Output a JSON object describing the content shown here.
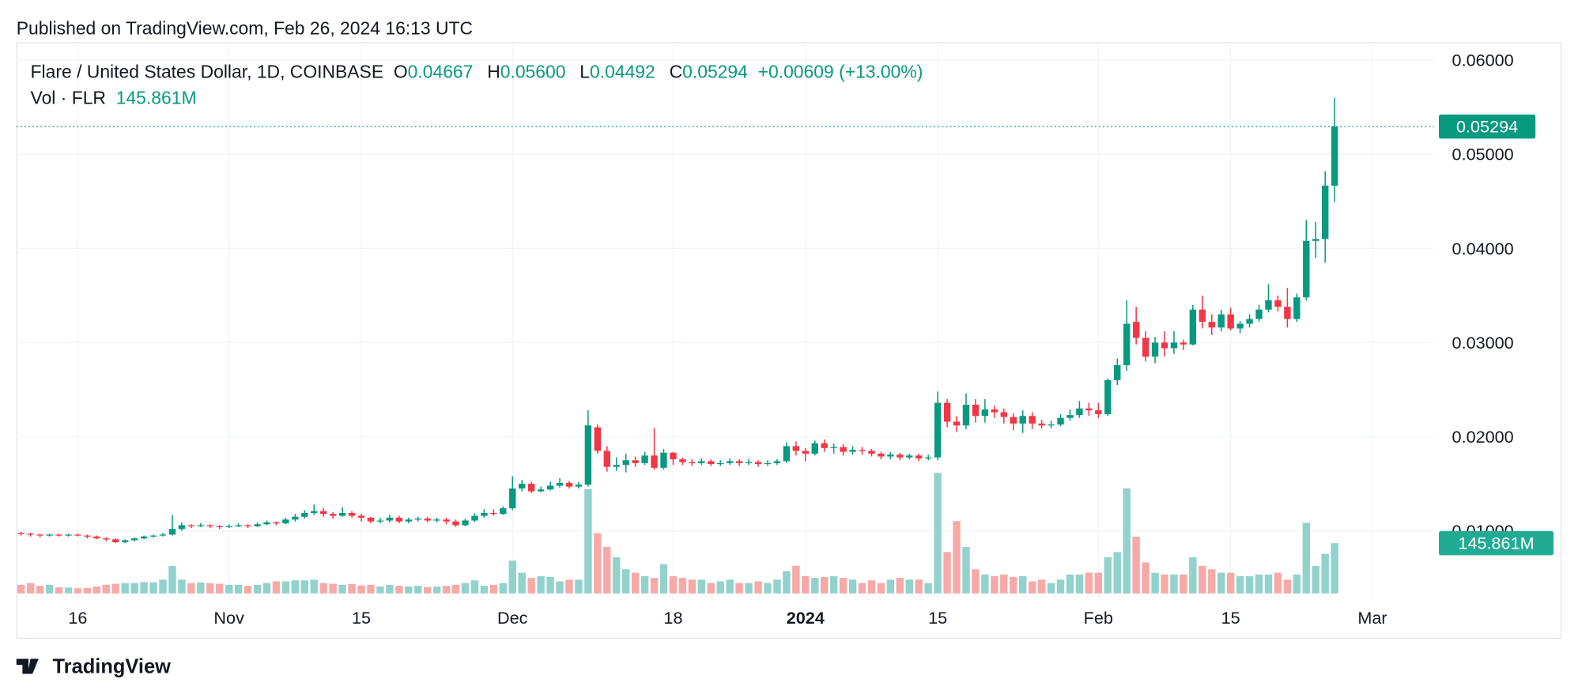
{
  "header": {
    "published": "Published on TradingView.com, Feb 26, 2024 16:13 UTC",
    "brand": "TradingView"
  },
  "chart_data": {
    "type": "candlestick",
    "legend": {
      "symbol": "Flare / United States Dollar, 1D, COINBASE",
      "o_label": "O",
      "o": "0.04667",
      "h_label": "H",
      "h": "0.05600",
      "l_label": "L",
      "l": "0.04492",
      "c_label": "C",
      "c": "0.05294",
      "change": "+0.00609 (+13.00%)",
      "volume_label": "Vol · FLR",
      "volume": "145.861M"
    },
    "last_price_label": "0.05294",
    "last_volume_label": "145.861M",
    "up_color": "#089981",
    "down_color": "#f23645",
    "volume_up_color": "#92d2cc",
    "volume_down_color": "#f7a9a7",
    "grid": true,
    "xlim": [
      -0.5,
      149.5
    ],
    "xticks": [
      {
        "value": 6,
        "label": "16"
      },
      {
        "value": 22,
        "label": "Nov"
      },
      {
        "value": 36,
        "label": "15"
      },
      {
        "value": 52,
        "label": "Dec"
      },
      {
        "value": 69,
        "label": "18"
      },
      {
        "value": 83,
        "label": "2024"
      },
      {
        "value": 97,
        "label": "15"
      },
      {
        "value": 114,
        "label": "Feb"
      },
      {
        "value": 128,
        "label": "15"
      },
      {
        "value": 143,
        "label": "Mar"
      }
    ],
    "ylim": [
      0.0025,
      0.0619
    ],
    "yticks": [
      {
        "value": 0.01,
        "label": "0.01000"
      },
      {
        "value": 0.02,
        "label": "0.02000"
      },
      {
        "value": 0.03,
        "label": "0.03000"
      },
      {
        "value": 0.04,
        "label": "0.04000"
      },
      {
        "value": 0.05,
        "label": "0.05000"
      },
      {
        "value": 0.06,
        "label": "0.06000"
      }
    ],
    "volume_ylim": [
      0,
      400
    ],
    "open": [
      0.0098,
      0.0097,
      0.0096,
      0.0095,
      0.0096,
      0.0095,
      0.0096,
      0.0095,
      0.0094,
      0.0092,
      0.0091,
      0.0088,
      0.009,
      0.0092,
      0.0094,
      0.0095,
      0.0096,
      0.0102,
      0.0106,
      0.0105,
      0.0106,
      0.0105,
      0.0104,
      0.0105,
      0.0106,
      0.0105,
      0.0107,
      0.0109,
      0.0108,
      0.0112,
      0.0115,
      0.0119,
      0.0121,
      0.0118,
      0.0116,
      0.0119,
      0.0116,
      0.0114,
      0.011,
      0.0111,
      0.0114,
      0.011,
      0.0112,
      0.0113,
      0.0111,
      0.0112,
      0.011,
      0.0106,
      0.0111,
      0.0116,
      0.0119,
      0.0118,
      0.0124,
      0.0145,
      0.015,
      0.0142,
      0.0144,
      0.0148,
      0.0151,
      0.0147,
      0.0149,
      0.021,
      0.0185,
      0.0168,
      0.017,
      0.0175,
      0.0172,
      0.018,
      0.0167,
      0.0183,
      0.0176,
      0.0173,
      0.0172,
      0.0174,
      0.0171,
      0.0172,
      0.0174,
      0.0172,
      0.0173,
      0.0171,
      0.0172,
      0.0174,
      0.019,
      0.0185,
      0.0182,
      0.0193,
      0.0188,
      0.0189,
      0.0184,
      0.0186,
      0.0185,
      0.0182,
      0.0179,
      0.0181,
      0.0178,
      0.018,
      0.0177,
      0.0178,
      0.0236,
      0.0216,
      0.0212,
      0.0234,
      0.0222,
      0.0229,
      0.0226,
      0.0221,
      0.0214,
      0.0222,
      0.0214,
      0.0212,
      0.0213,
      0.022,
      0.0223,
      0.023,
      0.0228,
      0.0224,
      0.026,
      0.0276,
      0.0322,
      0.0305,
      0.0285,
      0.03,
      0.0294,
      0.03,
      0.0298,
      0.0335,
      0.0322,
      0.0316,
      0.033,
      0.0315,
      0.032,
      0.0325,
      0.0335,
      0.0345,
      0.0338,
      0.0325,
      0.0348,
      0.0408,
      0.041,
      0.04667
    ],
    "high": [
      0.0099,
      0.0098,
      0.0097,
      0.0097,
      0.0097,
      0.0097,
      0.0097,
      0.0096,
      0.0095,
      0.0093,
      0.0092,
      0.0091,
      0.0093,
      0.0095,
      0.0096,
      0.0098,
      0.0117,
      0.0109,
      0.0107,
      0.0108,
      0.0107,
      0.0106,
      0.0107,
      0.0108,
      0.0107,
      0.0109,
      0.0111,
      0.011,
      0.0114,
      0.0118,
      0.0122,
      0.0128,
      0.0124,
      0.012,
      0.0125,
      0.0121,
      0.0118,
      0.0115,
      0.0114,
      0.0117,
      0.0116,
      0.0114,
      0.0115,
      0.0115,
      0.0114,
      0.0114,
      0.0112,
      0.0113,
      0.0119,
      0.0123,
      0.0123,
      0.0126,
      0.0158,
      0.0154,
      0.0152,
      0.0147,
      0.0152,
      0.0156,
      0.0153,
      0.0152,
      0.0228,
      0.0213,
      0.019,
      0.0178,
      0.0182,
      0.0179,
      0.0184,
      0.0209,
      0.0187,
      0.0184,
      0.0178,
      0.0176,
      0.0177,
      0.0176,
      0.0175,
      0.0177,
      0.0176,
      0.0176,
      0.0175,
      0.0175,
      0.0176,
      0.0194,
      0.0195,
      0.0188,
      0.0196,
      0.0197,
      0.0193,
      0.0192,
      0.019,
      0.0189,
      0.0187,
      0.0184,
      0.0184,
      0.0183,
      0.0182,
      0.0182,
      0.0181,
      0.0248,
      0.024,
      0.0222,
      0.0246,
      0.024,
      0.024,
      0.0233,
      0.023,
      0.0225,
      0.0228,
      0.0226,
      0.0218,
      0.0217,
      0.0224,
      0.0229,
      0.0238,
      0.0236,
      0.0236,
      0.0262,
      0.0283,
      0.0345,
      0.0338,
      0.0312,
      0.0306,
      0.0312,
      0.0312,
      0.0303,
      0.034,
      0.035,
      0.033,
      0.0335,
      0.0337,
      0.0323,
      0.033,
      0.034,
      0.0362,
      0.035,
      0.0358,
      0.0352,
      0.043,
      0.0428,
      0.0482,
      0.056
    ],
    "low": [
      0.0095,
      0.0094,
      0.0093,
      0.0094,
      0.0094,
      0.0094,
      0.0094,
      0.0092,
      0.0091,
      0.0089,
      0.0087,
      0.0087,
      0.0089,
      0.0091,
      0.0093,
      0.0094,
      0.0095,
      0.01,
      0.0103,
      0.0104,
      0.0103,
      0.0102,
      0.0103,
      0.0104,
      0.0103,
      0.0104,
      0.0106,
      0.0106,
      0.0107,
      0.011,
      0.0113,
      0.0117,
      0.0115,
      0.0113,
      0.0115,
      0.0114,
      0.011,
      0.0108,
      0.0108,
      0.0109,
      0.0108,
      0.0108,
      0.011,
      0.0109,
      0.0109,
      0.0107,
      0.0104,
      0.0105,
      0.0109,
      0.0114,
      0.0116,
      0.0117,
      0.0122,
      0.0142,
      0.014,
      0.0141,
      0.0143,
      0.0146,
      0.0145,
      0.0145,
      0.0147,
      0.0182,
      0.0163,
      0.0164,
      0.0162,
      0.0168,
      0.017,
      0.0165,
      0.0165,
      0.017,
      0.017,
      0.0169,
      0.017,
      0.0169,
      0.0169,
      0.017,
      0.0169,
      0.017,
      0.0168,
      0.0169,
      0.017,
      0.0172,
      0.018,
      0.0174,
      0.018,
      0.0184,
      0.0182,
      0.018,
      0.0181,
      0.0181,
      0.0179,
      0.0176,
      0.0176,
      0.0175,
      0.0176,
      0.0174,
      0.0175,
      0.0175,
      0.021,
      0.0205,
      0.0208,
      0.0215,
      0.0215,
      0.022,
      0.0214,
      0.0207,
      0.0204,
      0.0208,
      0.0209,
      0.0209,
      0.0211,
      0.0217,
      0.022,
      0.0222,
      0.022,
      0.0222,
      0.0255,
      0.027,
      0.0298,
      0.028,
      0.0278,
      0.0285,
      0.0288,
      0.0292,
      0.0297,
      0.0315,
      0.0308,
      0.0312,
      0.0313,
      0.031,
      0.0316,
      0.0322,
      0.0332,
      0.0333,
      0.0316,
      0.0322,
      0.0345,
      0.039,
      0.0385,
      0.04492
    ],
    "close": [
      0.0097,
      0.0096,
      0.0095,
      0.0096,
      0.0095,
      0.0096,
      0.0095,
      0.0094,
      0.0092,
      0.0091,
      0.0088,
      0.009,
      0.0092,
      0.0094,
      0.0095,
      0.0096,
      0.0102,
      0.0106,
      0.0105,
      0.0106,
      0.0105,
      0.0104,
      0.0105,
      0.0106,
      0.0105,
      0.0107,
      0.0109,
      0.0108,
      0.0112,
      0.0115,
      0.0119,
      0.0121,
      0.0118,
      0.0116,
      0.0119,
      0.0116,
      0.0114,
      0.011,
      0.0111,
      0.0114,
      0.011,
      0.0112,
      0.0113,
      0.0111,
      0.0112,
      0.011,
      0.0106,
      0.0111,
      0.0116,
      0.0119,
      0.0118,
      0.0124,
      0.0145,
      0.015,
      0.0142,
      0.0144,
      0.0148,
      0.0151,
      0.0147,
      0.0149,
      0.0212,
      0.0185,
      0.0168,
      0.017,
      0.0175,
      0.0172,
      0.018,
      0.0167,
      0.0183,
      0.0176,
      0.0173,
      0.0172,
      0.0174,
      0.0171,
      0.0172,
      0.0174,
      0.0172,
      0.0173,
      0.0171,
      0.0172,
      0.0174,
      0.019,
      0.0185,
      0.0182,
      0.0193,
      0.0188,
      0.0189,
      0.0184,
      0.0186,
      0.0185,
      0.0182,
      0.0179,
      0.0181,
      0.0178,
      0.018,
      0.0177,
      0.0178,
      0.0236,
      0.0216,
      0.0212,
      0.0234,
      0.0222,
      0.0229,
      0.0226,
      0.0221,
      0.0214,
      0.0222,
      0.0214,
      0.0212,
      0.0213,
      0.022,
      0.0223,
      0.023,
      0.0228,
      0.0224,
      0.026,
      0.0276,
      0.032,
      0.0305,
      0.0285,
      0.03,
      0.0294,
      0.03,
      0.0298,
      0.0335,
      0.0322,
      0.0316,
      0.033,
      0.0315,
      0.032,
      0.0325,
      0.0335,
      0.0345,
      0.0338,
      0.0325,
      0.0348,
      0.0408,
      0.041,
      0.04667,
      0.05294
    ],
    "volume": [
      25,
      30,
      22,
      25,
      18,
      17,
      15,
      16,
      20,
      25,
      28,
      30,
      30,
      33,
      32,
      40,
      80,
      40,
      30,
      32,
      30,
      28,
      25,
      25,
      22,
      25,
      30,
      35,
      35,
      38,
      38,
      40,
      30,
      28,
      25,
      27,
      23,
      25,
      20,
      25,
      22,
      20,
      22,
      18,
      20,
      22,
      25,
      30,
      38,
      22,
      25,
      30,
      95,
      60,
      45,
      50,
      48,
      35,
      40,
      40,
      303,
      175,
      135,
      105,
      70,
      60,
      50,
      45,
      85,
      50,
      45,
      40,
      40,
      30,
      35,
      40,
      30,
      30,
      35,
      30,
      40,
      65,
      80,
      50,
      45,
      48,
      50,
      45,
      40,
      30,
      38,
      30,
      40,
      45,
      40,
      40,
      30,
      350,
      120,
      210,
      135,
      70,
      55,
      50,
      55,
      48,
      50,
      35,
      40,
      30,
      40,
      55,
      55,
      60,
      60,
      105,
      120,
      305,
      165,
      90,
      60,
      55,
      55,
      55,
      105,
      80,
      70,
      60,
      60,
      50,
      50,
      55,
      55,
      60,
      40,
      55,
      205,
      80,
      115,
      145.861
    ]
  }
}
